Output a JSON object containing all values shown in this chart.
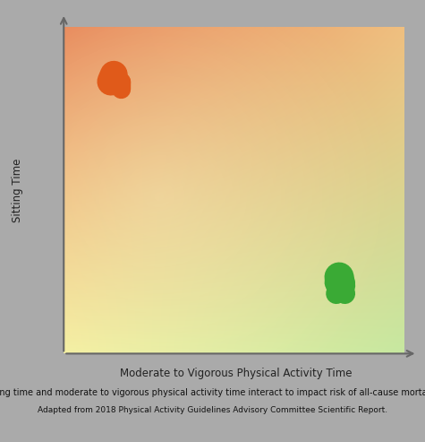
{
  "bg_color": "#aaaaaa",
  "ylabel_text": "Sitting Time",
  "xlabel_text": "Moderate to Vigorous Physical Activity Time",
  "sitting_icon_color": "#e05a1a",
  "walking_icon_color": "#3aaa35",
  "fig_width": 4.75,
  "fig_height": 4.93,
  "axis_label_fontsize": 8.5,
  "caption_fontsize": 7.0,
  "tl_color": [
    0.91,
    0.53,
    0.35
  ],
  "tr_color": [
    0.94,
    0.75,
    0.5
  ],
  "bl_color": [
    0.96,
    0.94,
    0.63
  ],
  "br_color": [
    0.78,
    0.91,
    0.63
  ],
  "caption_line1": "Sitting time and moderate to vigorous physical activity time interact to impact risk of all-cause mortality.",
  "caption_line2": "Adapted from 2018 Physical Activity Guidelines Advisory Committee Scientific Report."
}
